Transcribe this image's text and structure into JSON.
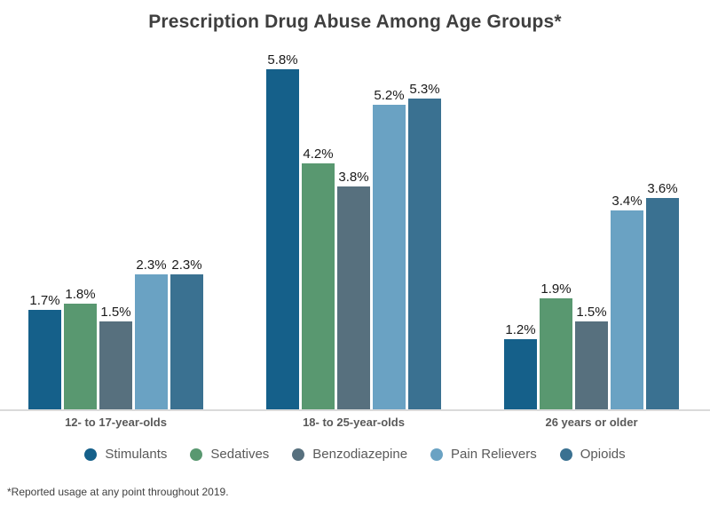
{
  "title": "Prescription Drug Abuse Among Age Groups*",
  "footnote": "*Reported usage at any point throughout 2019.",
  "axis_line_color": "#dadada",
  "chart_data": {
    "type": "bar",
    "title": "Prescription Drug Abuse Among Age Groups*",
    "categories": [
      "12- to 17-year-olds",
      "18- to 25-year-olds",
      "26 years or older"
    ],
    "series": [
      {
        "name": "Stimulants",
        "color": "#15608a",
        "values": [
          1.7,
          5.8,
          1.2
        ]
      },
      {
        "name": "Sedatives",
        "color": "#599870",
        "values": [
          1.8,
          4.2,
          1.9
        ]
      },
      {
        "name": "Benzodiazepine",
        "color": "#57707e",
        "values": [
          1.5,
          3.8,
          1.5
        ]
      },
      {
        "name": "Pain Relievers",
        "color": "#6aa2c3",
        "values": [
          2.3,
          5.2,
          3.4
        ]
      },
      {
        "name": "Opioids",
        "color": "#3a7191",
        "values": [
          2.3,
          5.3,
          3.6
        ]
      }
    ],
    "value_suffix": "%",
    "data_labels": true,
    "xlabel": "",
    "ylabel": "",
    "ylim": [
      0,
      6.2
    ],
    "grid": false,
    "y_axis_visible": false,
    "legend_position": "bottom"
  }
}
